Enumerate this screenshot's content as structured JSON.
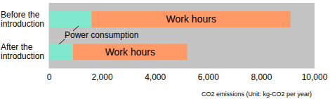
{
  "chart_data": {
    "type": "bar",
    "orientation": "horizontal",
    "stacked": true,
    "categories": [
      "Before the introduction",
      "After the introduction"
    ],
    "series": [
      {
        "name": "Power consumption",
        "color": "#80e8cc",
        "values": [
          1600,
          900
        ]
      },
      {
        "name": "Work hours",
        "color": "#ff9966",
        "values": [
          7500,
          4300
        ]
      }
    ],
    "annotations": [
      "Power consumption"
    ],
    "x_label": "CO2 emissions (Unit: kg-CO2 per year)",
    "xlim": [
      0,
      10000
    ],
    "xticks": [
      0,
      {
        "value": 2000,
        "label": "2,000"
      },
      {
        "value": 4000,
        "label": "4,000"
      },
      {
        "value": 6000,
        "label": "6,000"
      },
      {
        "value": 8000,
        "label": "8,000"
      },
      {
        "value": 10000,
        "label": "10,000"
      }
    ],
    "grid": false,
    "legend": false
  }
}
